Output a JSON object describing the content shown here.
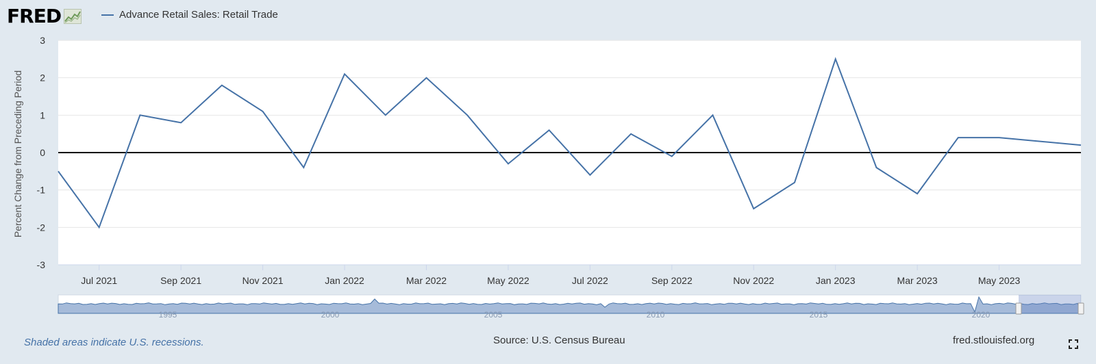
{
  "header": {
    "logo_text": "FRED",
    "logo_icon": "chart-line-icon",
    "series_label": "Advance Retail Sales: Retail Trade",
    "series_color": "#4572a7"
  },
  "chart_data": {
    "type": "line",
    "title": "",
    "ylabel": "Percent Change from Preceding Period",
    "xlabel": "",
    "ylim": [
      -3,
      3
    ],
    "yticks": [
      3,
      2,
      1,
      0,
      -1,
      -2,
      -3
    ],
    "zero_line": true,
    "grid": true,
    "x_start": "2021-06",
    "x_end": "2023-07",
    "xtick_labels": [
      "Jul 2021",
      "Sep 2021",
      "Nov 2021",
      "Jan 2022",
      "Mar 2022",
      "May 2022",
      "Jul 2022",
      "Sep 2022",
      "Nov 2022",
      "Jan 2023",
      "Mar 2023",
      "May 2023"
    ],
    "series": [
      {
        "name": "Advance Retail Sales: Retail Trade",
        "color": "#4572a7",
        "x": [
          "2021-06",
          "2021-07",
          "2021-08",
          "2021-09",
          "2021-10",
          "2021-11",
          "2021-12",
          "2022-01",
          "2022-02",
          "2022-03",
          "2022-04",
          "2022-05",
          "2022-06",
          "2022-07",
          "2022-08",
          "2022-09",
          "2022-10",
          "2022-11",
          "2022-12",
          "2023-01",
          "2023-02",
          "2023-03",
          "2023-04",
          "2023-05",
          "2023-06",
          "2023-07"
        ],
        "values": [
          -0.5,
          -2.0,
          1.0,
          0.8,
          1.8,
          1.1,
          -0.4,
          2.1,
          1.0,
          2.0,
          1.0,
          -0.3,
          0.6,
          -0.6,
          0.5,
          -0.1,
          1.0,
          -1.5,
          -0.8,
          2.5,
          -0.4,
          -1.1,
          0.4,
          0.4,
          0.3,
          0.2
        ]
      }
    ]
  },
  "navigator": {
    "year_labels": [
      "1995",
      "2000",
      "2005",
      "2010",
      "2015",
      "2020"
    ]
  },
  "footer": {
    "recession_note": "Shaded areas indicate U.S. recessions.",
    "source": "Source: U.S. Census Bureau",
    "site": "fred.stlouisfed.org",
    "fullscreen_icon": "fullscreen-icon"
  }
}
